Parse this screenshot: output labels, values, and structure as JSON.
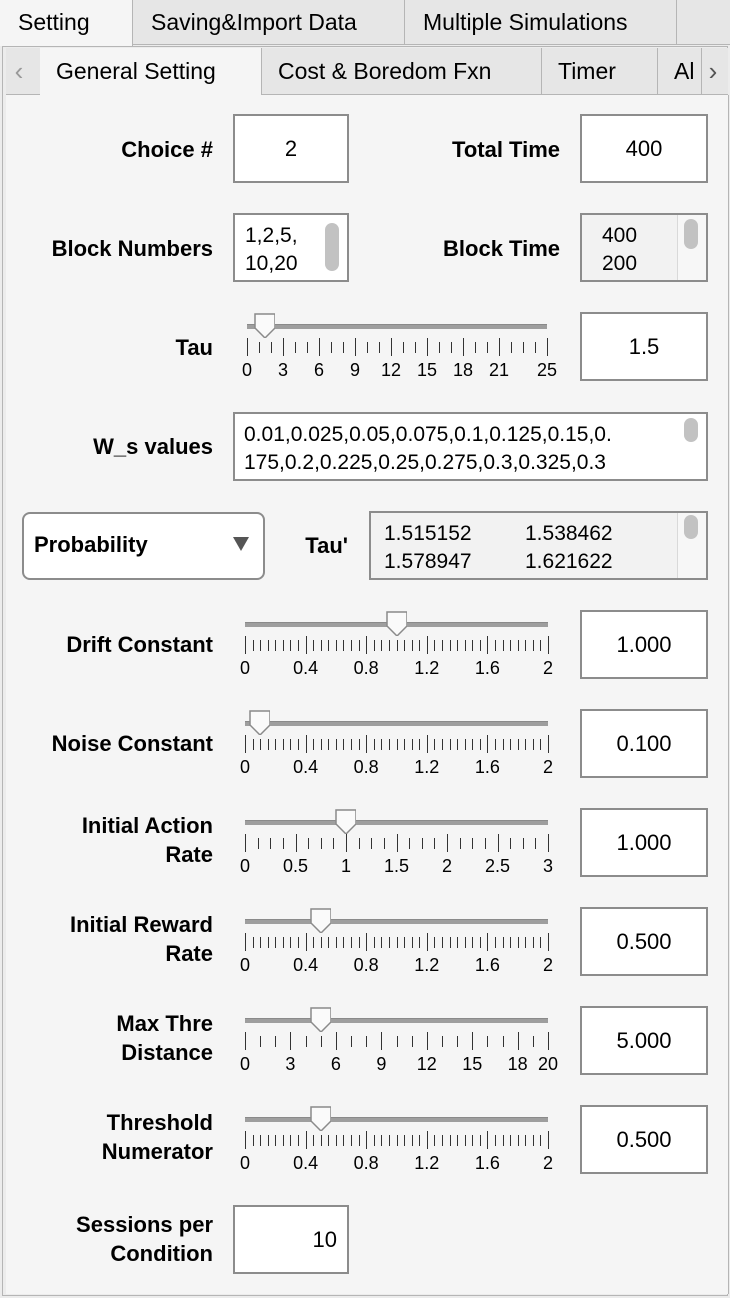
{
  "top_tabs": [
    "Setting",
    "Saving&Import Data",
    "Multiple Simulations"
  ],
  "sub_tabs": [
    "General Setting",
    "Cost & Boredom Fxn",
    "Timer",
    "Al"
  ],
  "fields": {
    "choice_label": "Choice #",
    "choice_value": "2",
    "total_time_label": "Total Time",
    "total_time_value": "400",
    "block_numbers_label": "Block Numbers",
    "block_numbers_lines": [
      "1,2,5,",
      "10,20"
    ],
    "block_time_label": "Block Time",
    "block_time_lines": [
      "400",
      "200"
    ],
    "tau_label": "Tau",
    "tau_value": "1.5",
    "ws_label": "W_s values",
    "ws_lines": [
      "0.01,0.025,0.05,0.075,0.1,0.125,0.15,0.",
      "175,0.2,0.225,0.25,0.275,0.3,0.325,0.3"
    ],
    "dropdown_value": "Probability",
    "tau_prime_label": "Tau'",
    "tau_prime_rows": [
      [
        "1.515152",
        "1.538462"
      ],
      [
        "1.578947",
        "1.621622"
      ]
    ],
    "sessions_label_1": "Sessions per",
    "sessions_label_2": "Condition",
    "sessions_value": "10"
  },
  "sliders": [
    {
      "id": "drift",
      "label1": "Drift Constant",
      "label2": "",
      "value": "1.000",
      "min": 0,
      "max": 2,
      "current": 1.0,
      "ticks": [
        "0",
        "0.4",
        "0.8",
        "1.2",
        "1.6",
        "2"
      ],
      "minor": 5
    },
    {
      "id": "noise",
      "label1": "Noise Constant",
      "label2": "",
      "value": "0.100",
      "min": 0,
      "max": 2,
      "current": 0.1,
      "ticks": [
        "0",
        "0.4",
        "0.8",
        "1.2",
        "1.6",
        "2"
      ],
      "minor": 5
    },
    {
      "id": "action",
      "label1": "Initial Action",
      "label2": "Rate",
      "value": "1.000",
      "min": 0,
      "max": 3,
      "current": 1.0,
      "ticks": [
        "0",
        "0.5",
        "1",
        "1.5",
        "2",
        "2.5",
        "3"
      ],
      "minor": 4
    },
    {
      "id": "reward",
      "label1": "Initial Reward",
      "label2": "Rate",
      "value": "0.500",
      "min": 0,
      "max": 2,
      "current": 0.5,
      "ticks": [
        "0",
        "0.4",
        "0.8",
        "1.2",
        "1.6",
        "2"
      ],
      "minor": 5
    },
    {
      "id": "maxthre",
      "label1": "Max Thre",
      "label2": "Distance",
      "value": "5.000",
      "min": 0,
      "max": 20,
      "current": 5,
      "ticks": [
        "0",
        "3",
        "6",
        "9",
        "12",
        "15",
        "18",
        "20"
      ],
      "minor": 3
    },
    {
      "id": "thresh",
      "label1": "Threshold",
      "label2": "Numerator",
      "value": "0.500",
      "min": 0,
      "max": 2,
      "current": 0.5,
      "ticks": [
        "0",
        "0.4",
        "0.8",
        "1.2",
        "1.6",
        "2"
      ],
      "minor": 5
    }
  ],
  "tau_slider": {
    "min": 0,
    "max": 25,
    "current": 1.5,
    "ticks": [
      "0",
      "3",
      "6",
      "9",
      "12",
      "15",
      "18",
      "21",
      "25"
    ]
  }
}
